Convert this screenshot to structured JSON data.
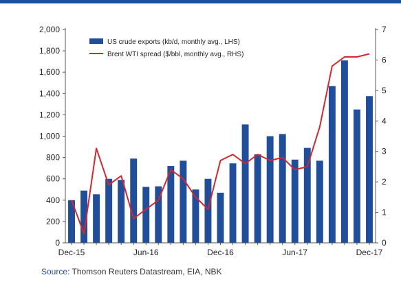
{
  "chart_data": {
    "type": "bar+line",
    "title": "",
    "x": [
      "Dec-15",
      "Jan-16",
      "Feb-16",
      "Mar-16",
      "Apr-16",
      "May-16",
      "Jun-16",
      "Jul-16",
      "Aug-16",
      "Sep-16",
      "Oct-16",
      "Nov-16",
      "Dec-16",
      "Jan-17",
      "Feb-17",
      "Mar-17",
      "Apr-17",
      "May-17",
      "Jun-17",
      "Jul-17",
      "Aug-17",
      "Sep-17",
      "Oct-17",
      "Nov-17",
      "Dec-17"
    ],
    "x_tick_labels": [
      "Dec-15",
      "Jun-16",
      "Dec-16",
      "Jun-17",
      "Dec-17"
    ],
    "series": [
      {
        "name": "US crude exports (kb/d, monthly avg., LHS)",
        "type": "bar",
        "axis": "left",
        "color": "#1f4e9c",
        "values": [
          400,
          490,
          455,
          600,
          590,
          790,
          525,
          530,
          720,
          770,
          500,
          600,
          470,
          745,
          1110,
          830,
          1000,
          1020,
          780,
          890,
          770,
          1470,
          1710,
          1250,
          1375
        ]
      },
      {
        "name": "Brent WTI spread ($/bbl, monthly avg., RHS)",
        "type": "line",
        "axis": "right",
        "color": "#d9252c",
        "values": [
          1.4,
          0.3,
          3.1,
          1.9,
          2.2,
          0.8,
          1.1,
          1.4,
          2.4,
          2.1,
          1.5,
          1.1,
          2.7,
          2.9,
          2.6,
          2.9,
          2.7,
          2.8,
          2.4,
          2.5,
          3.8,
          5.8,
          6.1,
          6.1,
          6.2
        ]
      }
    ],
    "y_left": {
      "ylim": [
        0,
        2000
      ],
      "ticks": [
        "0",
        "200",
        "400",
        "600",
        "800",
        "1,000",
        "1,200",
        "1,400",
        "1,600",
        "1,800",
        "2,000"
      ]
    },
    "y_right": {
      "ylim": [
        0,
        7
      ],
      "ticks": [
        "0",
        "1",
        "2",
        "3",
        "4",
        "5",
        "6",
        "7"
      ]
    },
    "legend": {
      "placement": "top-center"
    },
    "grid": false
  },
  "source": {
    "prefix": "Source:",
    "text": " Thomson Reuters Datastream, EIA, NBK"
  },
  "colors": {
    "accent": "#1f4e9c",
    "line": "#d9252c",
    "axis": "#555555"
  }
}
